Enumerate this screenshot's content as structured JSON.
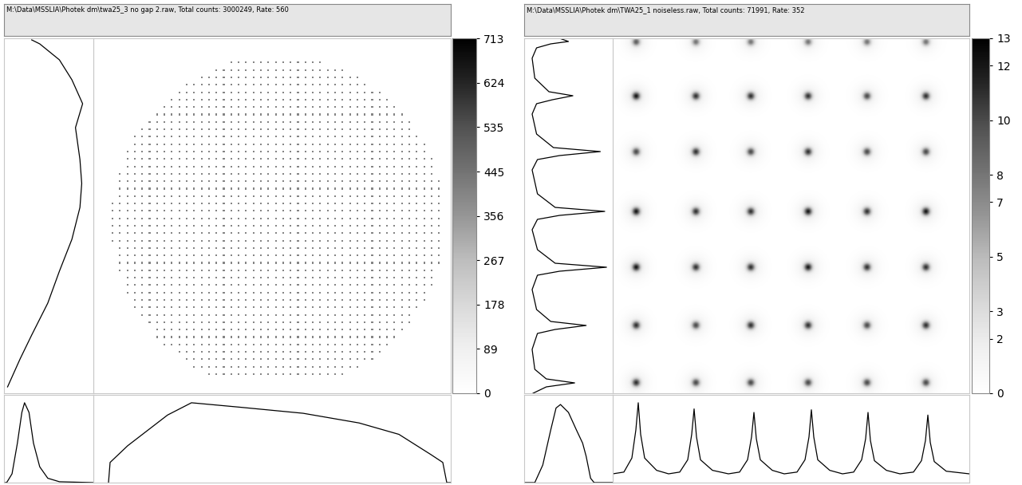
{
  "chart_data": [
    {
      "type": "heatmap",
      "title": "M:\\Data\\MSSLIA\\Photek dm\\twa25_3 no gap 2.raw, Total counts: 3000249, Rate: 560",
      "tick_labels": false,
      "color": "#000000",
      "image": {
        "xlim": [
          0,
          448
        ],
        "ylim": [
          0,
          445
        ],
        "spot_x": [
          24,
          33.3,
          42.6,
          51.9,
          61.2,
          70.5,
          79.8,
          89.1,
          98.4,
          107.7,
          117,
          126.3,
          135.6,
          144.9,
          154.2,
          163.5,
          172.8,
          182.1,
          191.4,
          200.7,
          210,
          219.3,
          228.6,
          237.9,
          247.2,
          256.5,
          265.8,
          275.1,
          284.4,
          293.7,
          303,
          312.3,
          321.6,
          330.9,
          340.2,
          349.5,
          358.8,
          368.1,
          377.4,
          386.7,
          396,
          405.3,
          414.6,
          423.9,
          433.2
        ],
        "spot_y": [
          24,
          33.3,
          42.6,
          51.9,
          61.2,
          70.5,
          79.8,
          89.1,
          98.4,
          107.7,
          117,
          126.3,
          135.6,
          144.9,
          154.2,
          163.5,
          172.8,
          182.1,
          191.4,
          200.7,
          210,
          219.3,
          228.6,
          237.9,
          247.2,
          256.5,
          265.8,
          275.1,
          284.4,
          293.7,
          303,
          312.3,
          321.6,
          330.9,
          340.2,
          349.5,
          358.8,
          368.1,
          377.4,
          386.7,
          396,
          405.3,
          414.6,
          423.9,
          433.2
        ],
        "spot_value": 400,
        "aperture": {
          "center": [
            231,
            214
          ],
          "radius": 209
        }
      },
      "colorbar": {
        "range": [
          0,
          713
        ],
        "ticks": [
          0,
          89,
          178,
          267,
          356,
          445,
          535,
          624,
          713
        ]
      },
      "y_profile": {
        "xlim": [
          0,
          100
        ],
        "y": [
          8,
          43,
          73,
          113,
          153,
          193,
          233,
          263,
          293,
          333,
          363,
          393,
          418,
          438,
          443
        ],
        "values": [
          4,
          18,
          31,
          49,
          62,
          76,
          85,
          87,
          85,
          80,
          88,
          76,
          62,
          40,
          31
        ]
      },
      "x_profile": {
        "ylim": [
          0,
          100
        ],
        "x": [
          19,
          21,
          43,
          93,
          123,
          183,
          263,
          333,
          383,
          423,
          438,
          443,
          448
        ],
        "values": [
          0,
          23,
          42,
          77,
          91,
          86,
          79,
          68,
          55,
          32,
          23,
          0,
          0
        ]
      },
      "histogram": {
        "xlim": [
          0,
          100
        ],
        "ylim": [
          0,
          100
        ],
        "x": [
          0,
          3,
          9,
          15,
          20,
          23,
          28,
          33,
          40,
          49,
          62,
          100
        ],
        "values": [
          0,
          0,
          10,
          45,
          80,
          91,
          80,
          45,
          18,
          5,
          1,
          0
        ]
      }
    },
    {
      "type": "heatmap",
      "title": "M:\\Data\\MSSLIA\\Photek dm\\TWA25_1 noiseless.raw, Total counts: 71991, Rate: 352",
      "tick_labels": false,
      "color": "#000000",
      "image": {
        "xlim": [
          0,
          447
        ],
        "ylim": [
          0,
          445
        ],
        "spot_x": [
          29,
          104,
          173,
          245,
          319,
          393
        ],
        "spot_y": [
          441,
          373,
          303,
          228,
          158,
          85,
          13
        ],
        "spot_values": [
          [
            9,
            8,
            8,
            8,
            8,
            8
          ],
          [
            12,
            11,
            11,
            11,
            10,
            11
          ],
          [
            10,
            11,
            10,
            11,
            10,
            10
          ],
          [
            12,
            11,
            11,
            12,
            11,
            12
          ],
          [
            12,
            11,
            11,
            12,
            11,
            11
          ],
          [
            11,
            10,
            11,
            11,
            10,
            11
          ],
          [
            11,
            10,
            10,
            10,
            10,
            10
          ]
        ]
      },
      "colorbar": {
        "range": [
          0,
          13
        ],
        "ticks": [
          0,
          2,
          3,
          5,
          7,
          8,
          10,
          12,
          13
        ]
      },
      "y_profile": {
        "xlim": [
          0,
          100
        ],
        "y": [
          0,
          8,
          13,
          18,
          30,
          55,
          75,
          80,
          85,
          90,
          105,
          130,
          148,
          153,
          158,
          163,
          180,
          205,
          218,
          223,
          228,
          233,
          250,
          280,
          293,
          298,
          303,
          308,
          325,
          350,
          363,
          368,
          373,
          378,
          395,
          420,
          433,
          438,
          441,
          445
        ],
        "values": [
          10,
          25,
          57,
          25,
          12,
          9,
          15,
          35,
          70,
          30,
          14,
          9,
          15,
          40,
          93,
          35,
          15,
          9,
          15,
          40,
          91,
          35,
          15,
          9,
          15,
          40,
          86,
          33,
          14,
          9,
          14,
          32,
          55,
          28,
          12,
          9,
          14,
          30,
          50,
          40
        ]
      },
      "x_profile": {
        "ylim": [
          0,
          100
        ],
        "x": [
          0,
          14,
          24,
          29,
          32,
          35,
          40,
          55,
          70,
          84,
          94,
          99,
          102,
          105,
          110,
          125,
          145,
          159,
          169,
          174,
          177,
          180,
          185,
          200,
          215,
          231,
          241,
          246,
          249,
          252,
          257,
          272,
          288,
          302,
          312,
          317,
          320,
          323,
          328,
          343,
          360,
          377,
          387,
          392,
          395,
          398,
          403,
          418,
          447
        ],
        "values": [
          10,
          12,
          28,
          60,
          91,
          55,
          28,
          14,
          10,
          12,
          26,
          55,
          84,
          52,
          26,
          14,
          10,
          12,
          26,
          52,
          80,
          50,
          26,
          14,
          10,
          12,
          26,
          52,
          83,
          52,
          26,
          14,
          10,
          12,
          26,
          50,
          80,
          48,
          25,
          14,
          10,
          12,
          25,
          48,
          77,
          46,
          24,
          13,
          10
        ]
      },
      "histogram": {
        "xlim": [
          0,
          100
        ],
        "ylim": [
          0,
          100
        ],
        "x": [
          0,
          12,
          21,
          30,
          36,
          41,
          50,
          59,
          66,
          70,
          75,
          79,
          100
        ],
        "values": [
          0,
          0,
          20,
          60,
          85,
          89,
          80,
          60,
          45,
          30,
          5,
          0,
          0
        ]
      }
    }
  ]
}
